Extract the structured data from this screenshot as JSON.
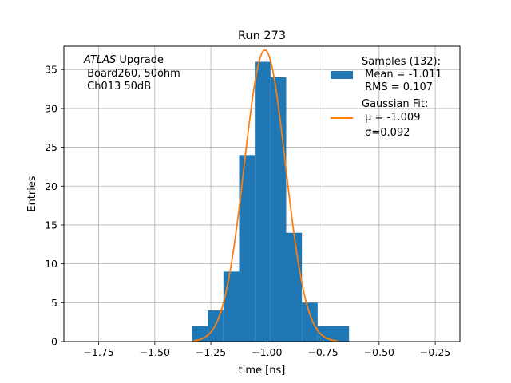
{
  "chart_data": {
    "type": "bar",
    "title": "Run 273",
    "xlabel": "time [ns]",
    "ylabel": "Entries",
    "xlim": [
      -1.905,
      -0.14
    ],
    "ylim": [
      0,
      38
    ],
    "x_ticks": [
      -1.75,
      -1.5,
      -1.25,
      -1.0,
      -0.75,
      -0.5,
      -0.25
    ],
    "x_tick_labels": [
      "−1.75",
      "−1.50",
      "−1.25",
      "−1.00",
      "−0.75",
      "−0.50",
      "−0.25"
    ],
    "y_ticks": [
      0,
      5,
      10,
      15,
      20,
      25,
      30,
      35
    ],
    "y_tick_labels": [
      "0",
      "5",
      "10",
      "15",
      "20",
      "25",
      "30",
      "35"
    ],
    "grid": true,
    "legend_position": "top-right",
    "histogram": {
      "bin_edges": [
        -1.334,
        -1.264,
        -1.194,
        -1.124,
        -1.054,
        -0.984,
        -0.914,
        -0.844,
        -0.774,
        -0.704,
        -0.634
      ],
      "counts": [
        2,
        4,
        9,
        24,
        36,
        34,
        14,
        5,
        2,
        2
      ],
      "color": "#1f77b4"
    },
    "fit": {
      "amplitude": 37.5,
      "mu": -1.009,
      "sigma": 0.092,
      "color": "#ff7f0e"
    },
    "legend": [
      {
        "lines": [
          "Samples (132):",
          " Mean = -1.011",
          " RMS = 0.107"
        ],
        "color": "#1f77b4",
        "kind": "patch"
      },
      {
        "lines": [
          "Gaussian Fit:",
          " μ = -1.009",
          " σ=0.092"
        ],
        "color": "#ff7f0e",
        "kind": "line"
      }
    ],
    "annotation": {
      "italic": "ATLAS",
      "rest": " Upgrade",
      "line2": " Board260, 50ohm",
      "line3": " Ch013 50dB"
    }
  }
}
